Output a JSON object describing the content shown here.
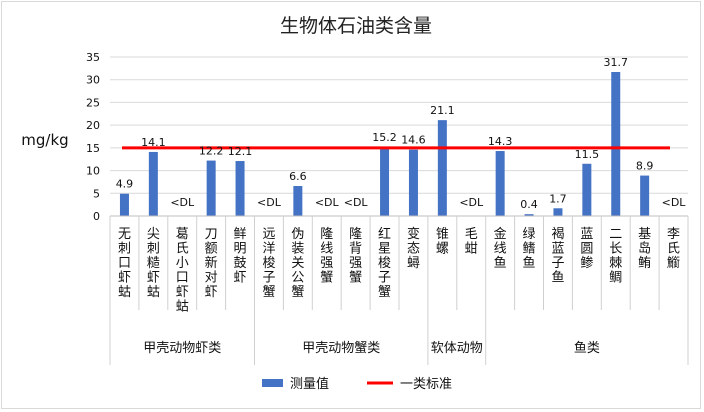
{
  "chart_data": {
    "type": "bar",
    "title": "生物体石油类含量",
    "ylabel": "mg/kg",
    "ylim": [
      0,
      35
    ],
    "yticks": [
      0,
      5,
      10,
      15,
      20,
      25,
      30,
      35
    ],
    "categories": [
      "无刺口虾蛄",
      "尖刺糙虾蛄",
      "葛氏小口虾蛄",
      "刀额新对虾",
      "鲜明鼓虾",
      "远洋梭子蟹",
      "伪装关公蟹",
      "隆线强蟹",
      "隆背强蟹",
      "红星梭子蟹",
      "变态蟳",
      "锥螺",
      "毛蚶",
      "金线鱼",
      "绿鳍鱼",
      "褐蓝子鱼",
      "蓝圆鲹",
      "二长棘鲷",
      "基岛鲔",
      "李氏䲗"
    ],
    "series": [
      {
        "name": "测量值",
        "color": "#4472c4",
        "values": [
          4.9,
          14.1,
          null,
          12.2,
          12.1,
          null,
          6.6,
          null,
          null,
          15.2,
          14.6,
          21.1,
          null,
          14.3,
          0.4,
          1.7,
          11.5,
          31.7,
          8.9,
          null
        ],
        "labels": [
          "4.9",
          "14.1",
          "<DL",
          "12.2",
          "12.1",
          "<DL",
          "6.6",
          "<DL",
          "<DL",
          "15.2",
          "14.6",
          "21.1",
          "<DL",
          "14.3",
          "0.4",
          "1.7",
          "11.5",
          "31.7",
          "8.9",
          "<DL"
        ]
      }
    ],
    "reference_line": {
      "name": "一类标准",
      "value": 15,
      "color": "#ff0000"
    },
    "groups": [
      {
        "label": "甲壳动物虾类",
        "count": 5
      },
      {
        "label": "甲壳动物蟹类",
        "count": 6
      },
      {
        "label": "软体动物",
        "count": 2
      },
      {
        "label": "鱼类",
        "count": 7
      }
    ],
    "legend": {
      "position": "bottom"
    },
    "grid": true
  }
}
